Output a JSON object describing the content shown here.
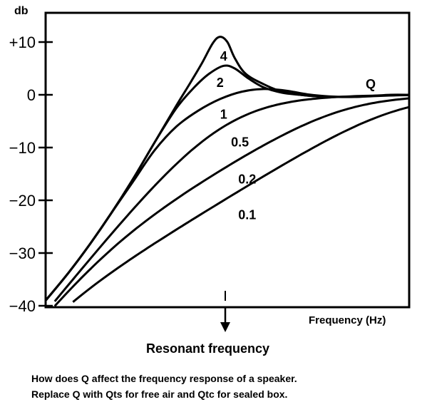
{
  "chart_data": {
    "type": "line",
    "ylabel": "db",
    "xlabel": "Frequency (Hz)",
    "ylim": [
      -40,
      13
    ],
    "xlim": [
      0,
      1
    ],
    "yticks": [
      10,
      0,
      -10,
      -20,
      -30,
      -40
    ],
    "ytick_labels": [
      "+10",
      "0",
      "−10",
      "−20",
      "−30",
      "−40"
    ],
    "grid": false,
    "legend_title": "Q",
    "series": [
      {
        "name": "4",
        "label_at": [
          0.48,
          7.3
        ],
        "x": [
          0,
          0.06,
          0.12,
          0.18,
          0.24,
          0.3,
          0.36,
          0.4,
          0.43,
          0.46,
          0.48,
          0.5,
          0.52,
          0.55,
          0.6,
          0.65,
          0.7,
          0.75,
          0.8,
          0.85,
          0.9,
          0.95,
          1.0
        ],
        "values": [
          -39,
          -34,
          -28.5,
          -22.5,
          -16,
          -9,
          -2,
          2.5,
          6,
          9.8,
          11,
          10,
          7,
          4,
          2,
          0.6,
          0,
          -0.3,
          -0.4,
          -0.4,
          -0.2,
          0,
          0
        ]
      },
      {
        "name": "2",
        "label_at": [
          0.47,
          2.3
        ],
        "x": [
          0,
          0.06,
          0.12,
          0.18,
          0.24,
          0.3,
          0.36,
          0.41,
          0.45,
          0.49,
          0.52,
          0.56,
          0.6,
          0.65,
          0.7,
          0.75,
          0.8,
          0.9,
          1.0
        ],
        "values": [
          -39,
          -34,
          -28.5,
          -22.5,
          -16,
          -9,
          -2.5,
          1.5,
          4,
          5.5,
          5,
          3,
          1.4,
          0.4,
          0,
          -0.3,
          -0.4,
          -0.2,
          0
        ]
      },
      {
        "name": "1",
        "label_at": [
          0.48,
          -3.7
        ],
        "x": [
          0,
          0.06,
          0.12,
          0.18,
          0.24,
          0.3,
          0.36,
          0.42,
          0.48,
          0.54,
          0.6,
          0.66,
          0.72,
          0.78,
          0.85,
          0.92,
          1.0
        ],
        "values": [
          -39,
          -34,
          -28.5,
          -22.5,
          -16.5,
          -10.5,
          -6,
          -3,
          -0.8,
          0.6,
          1.1,
          0.8,
          0.1,
          -0.3,
          -0.4,
          -0.2,
          0
        ]
      },
      {
        "name": "0.5",
        "label_at": [
          0.51,
          -9
        ]
      },
      {
        "name": "0.2",
        "label_at": [
          0.53,
          -16
        ]
      },
      {
        "name": "0.1",
        "label_at": [
          0.53,
          -22.8
        ]
      }
    ]
  },
  "annotation": {
    "label": "Resonant frequency"
  },
  "caption": {
    "line1": "How does Q affect the frequency response of a speaker.",
    "line2": "Replace Q with Qts for free air and Qtc for sealed box."
  }
}
